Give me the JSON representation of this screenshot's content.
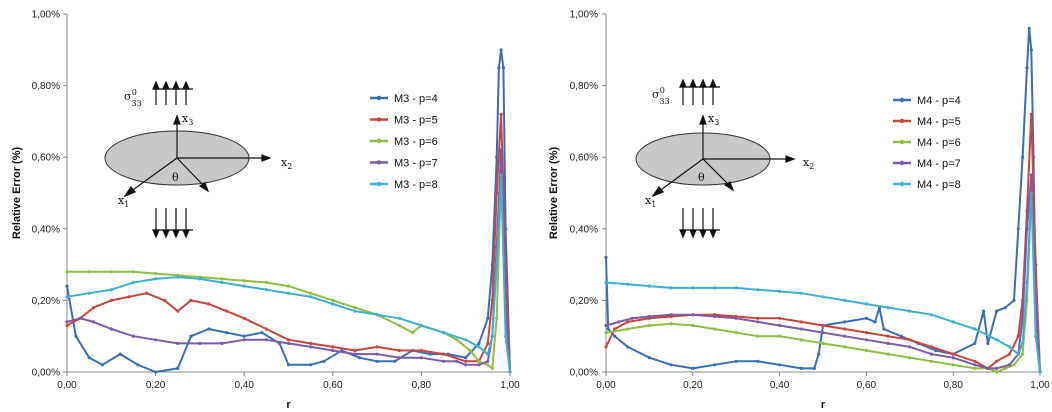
{
  "chart_data": [
    {
      "type": "line",
      "xlabel": "r",
      "ylabel": "Relative Error (%)",
      "xlim": [
        0,
        1
      ],
      "ylim": [
        0,
        1
      ],
      "xticks": [
        "0,00",
        "0,20",
        "0,40",
        "0,60",
        "0,80",
        "1,00"
      ],
      "yticks": [
        "0,00%",
        "0,20%",
        "0,40%",
        "0,60%",
        "0,80%",
        "1,00%"
      ],
      "legend_position": "right",
      "series": [
        {
          "name": "M3 - p=4",
          "color": "#3b6eb7",
          "x": [
            0,
            0.02,
            0.05,
            0.08,
            0.12,
            0.16,
            0.2,
            0.25,
            0.28,
            0.32,
            0.36,
            0.4,
            0.44,
            0.48,
            0.5,
            0.55,
            0.58,
            0.62,
            0.66,
            0.7,
            0.74,
            0.78,
            0.82,
            0.86,
            0.9,
            0.93,
            0.95,
            0.96,
            0.97,
            0.975,
            0.98,
            0.985,
            0.99,
            1.0
          ],
          "y": [
            0.24,
            0.1,
            0.04,
            0.02,
            0.05,
            0.02,
            0.0,
            0.01,
            0.1,
            0.12,
            0.11,
            0.1,
            0.11,
            0.08,
            0.02,
            0.02,
            0.03,
            0.06,
            0.04,
            0.03,
            0.03,
            0.06,
            0.05,
            0.05,
            0.04,
            0.08,
            0.15,
            0.3,
            0.6,
            0.85,
            0.9,
            0.85,
            0.4,
            0.0
          ]
        },
        {
          "name": "M3 - p=5",
          "color": "#c9453f",
          "x": [
            0,
            0.03,
            0.06,
            0.1,
            0.14,
            0.18,
            0.22,
            0.25,
            0.28,
            0.32,
            0.36,
            0.4,
            0.45,
            0.5,
            0.55,
            0.6,
            0.65,
            0.7,
            0.75,
            0.8,
            0.85,
            0.9,
            0.93,
            0.95,
            0.96,
            0.97,
            0.98,
            0.99,
            1.0
          ],
          "y": [
            0.13,
            0.15,
            0.18,
            0.2,
            0.21,
            0.22,
            0.2,
            0.17,
            0.2,
            0.19,
            0.17,
            0.15,
            0.12,
            0.09,
            0.08,
            0.07,
            0.06,
            0.07,
            0.06,
            0.06,
            0.05,
            0.03,
            0.03,
            0.08,
            0.2,
            0.5,
            0.72,
            0.3,
            0.0
          ]
        },
        {
          "name": "M3 - p=6",
          "color": "#8fbe45",
          "x": [
            0,
            0.05,
            0.1,
            0.15,
            0.2,
            0.25,
            0.3,
            0.35,
            0.4,
            0.45,
            0.5,
            0.55,
            0.6,
            0.65,
            0.7,
            0.75,
            0.78,
            0.8,
            0.85,
            0.88,
            0.91,
            0.93,
            0.95,
            0.96,
            0.97,
            0.98,
            0.99,
            1.0
          ],
          "y": [
            0.28,
            0.28,
            0.28,
            0.28,
            0.275,
            0.27,
            0.265,
            0.26,
            0.255,
            0.25,
            0.24,
            0.22,
            0.2,
            0.18,
            0.16,
            0.13,
            0.11,
            0.13,
            0.11,
            0.09,
            0.06,
            0.03,
            0.02,
            0.01,
            0.15,
            0.55,
            0.2,
            0.0
          ]
        },
        {
          "name": "M3 - p=7",
          "color": "#7d5ba6",
          "x": [
            0,
            0.03,
            0.06,
            0.1,
            0.15,
            0.2,
            0.25,
            0.3,
            0.35,
            0.4,
            0.45,
            0.5,
            0.55,
            0.6,
            0.65,
            0.7,
            0.75,
            0.8,
            0.85,
            0.88,
            0.9,
            0.93,
            0.95,
            0.96,
            0.97,
            0.98,
            0.99,
            1.0
          ],
          "y": [
            0.14,
            0.15,
            0.14,
            0.12,
            0.1,
            0.09,
            0.08,
            0.08,
            0.08,
            0.09,
            0.09,
            0.08,
            0.07,
            0.06,
            0.05,
            0.05,
            0.04,
            0.04,
            0.03,
            0.03,
            0.02,
            0.02,
            0.03,
            0.1,
            0.35,
            0.62,
            0.2,
            0.0
          ]
        },
        {
          "name": "M3 - p=8",
          "color": "#3fb1ce",
          "x": [
            0,
            0.05,
            0.1,
            0.15,
            0.2,
            0.25,
            0.3,
            0.35,
            0.4,
            0.45,
            0.5,
            0.55,
            0.6,
            0.65,
            0.7,
            0.75,
            0.8,
            0.85,
            0.9,
            0.93,
            0.95,
            0.96,
            0.97,
            0.98,
            0.99,
            1.0
          ],
          "y": [
            0.21,
            0.22,
            0.23,
            0.25,
            0.26,
            0.265,
            0.26,
            0.25,
            0.24,
            0.23,
            0.22,
            0.21,
            0.19,
            0.17,
            0.16,
            0.15,
            0.13,
            0.11,
            0.09,
            0.07,
            0.05,
            0.1,
            0.3,
            0.55,
            0.1,
            0.0
          ]
        }
      ]
    },
    {
      "type": "line",
      "xlabel": "r",
      "ylabel": "Relative Error (%)",
      "xlim": [
        0,
        1
      ],
      "ylim": [
        0,
        1
      ],
      "xticks": [
        "0,00",
        "0,20",
        "0,40",
        "0,60",
        "0,80",
        "1,00"
      ],
      "yticks": [
        "0,00%",
        "0,20%",
        "0,40%",
        "0,60%",
        "0,80%",
        "1,00%"
      ],
      "legend_position": "right",
      "series": [
        {
          "name": "M4 - p=4",
          "color": "#3b6eb7",
          "x": [
            0,
            0.005,
            0.02,
            0.05,
            0.1,
            0.15,
            0.2,
            0.25,
            0.3,
            0.35,
            0.4,
            0.45,
            0.48,
            0.49,
            0.5,
            0.55,
            0.6,
            0.62,
            0.63,
            0.64,
            0.68,
            0.72,
            0.76,
            0.8,
            0.85,
            0.87,
            0.88,
            0.9,
            0.92,
            0.94,
            0.95,
            0.96,
            0.97,
            0.975,
            0.98,
            0.985,
            0.99,
            1.0
          ],
          "y": [
            0.32,
            0.12,
            0.1,
            0.07,
            0.04,
            0.02,
            0.01,
            0.02,
            0.03,
            0.03,
            0.02,
            0.01,
            0.01,
            0.05,
            0.13,
            0.14,
            0.15,
            0.14,
            0.18,
            0.12,
            0.1,
            0.08,
            0.06,
            0.05,
            0.08,
            0.17,
            0.08,
            0.17,
            0.18,
            0.2,
            0.4,
            0.6,
            0.85,
            0.96,
            0.9,
            0.6,
            0.2,
            0.0
          ]
        },
        {
          "name": "M4 - p=5",
          "color": "#c9453f",
          "x": [
            0,
            0.02,
            0.05,
            0.1,
            0.15,
            0.2,
            0.25,
            0.3,
            0.35,
            0.4,
            0.45,
            0.5,
            0.55,
            0.6,
            0.65,
            0.7,
            0.75,
            0.8,
            0.85,
            0.88,
            0.9,
            0.93,
            0.95,
            0.96,
            0.97,
            0.98,
            0.99,
            1.0
          ],
          "y": [
            0.07,
            0.12,
            0.14,
            0.15,
            0.155,
            0.16,
            0.16,
            0.155,
            0.15,
            0.15,
            0.14,
            0.13,
            0.12,
            0.11,
            0.1,
            0.09,
            0.07,
            0.05,
            0.03,
            0.01,
            0.03,
            0.05,
            0.1,
            0.2,
            0.45,
            0.72,
            0.3,
            0.0
          ]
        },
        {
          "name": "M4 - p=6",
          "color": "#8fbe45",
          "x": [
            0,
            0.05,
            0.1,
            0.15,
            0.2,
            0.25,
            0.3,
            0.35,
            0.4,
            0.45,
            0.5,
            0.55,
            0.6,
            0.65,
            0.7,
            0.75,
            0.8,
            0.85,
            0.88,
            0.9,
            0.92,
            0.94,
            0.96,
            0.97,
            0.98,
            0.99,
            1.0
          ],
          "y": [
            0.11,
            0.12,
            0.13,
            0.135,
            0.13,
            0.12,
            0.11,
            0.1,
            0.1,
            0.09,
            0.08,
            0.07,
            0.06,
            0.05,
            0.04,
            0.03,
            0.02,
            0.01,
            0.01,
            0.0,
            0.01,
            0.02,
            0.05,
            0.2,
            0.5,
            0.2,
            0.0
          ]
        },
        {
          "name": "M4 - p=7",
          "color": "#7d5ba6",
          "x": [
            0,
            0.03,
            0.06,
            0.1,
            0.15,
            0.2,
            0.25,
            0.3,
            0.35,
            0.4,
            0.45,
            0.5,
            0.55,
            0.6,
            0.65,
            0.7,
            0.75,
            0.8,
            0.85,
            0.88,
            0.9,
            0.93,
            0.95,
            0.96,
            0.97,
            0.98,
            0.99,
            1.0
          ],
          "y": [
            0.13,
            0.14,
            0.15,
            0.155,
            0.16,
            0.16,
            0.155,
            0.15,
            0.14,
            0.13,
            0.12,
            0.11,
            0.1,
            0.09,
            0.08,
            0.07,
            0.05,
            0.04,
            0.02,
            0.01,
            0.01,
            0.02,
            0.05,
            0.15,
            0.4,
            0.55,
            0.2,
            0.0
          ]
        },
        {
          "name": "M4 - p=8",
          "color": "#3fb1ce",
          "x": [
            0,
            0.05,
            0.1,
            0.15,
            0.2,
            0.25,
            0.3,
            0.35,
            0.4,
            0.45,
            0.5,
            0.55,
            0.6,
            0.65,
            0.7,
            0.75,
            0.8,
            0.85,
            0.9,
            0.93,
            0.95,
            0.96,
            0.97,
            0.98,
            0.99,
            1.0
          ],
          "y": [
            0.25,
            0.245,
            0.24,
            0.235,
            0.235,
            0.235,
            0.235,
            0.23,
            0.225,
            0.22,
            0.21,
            0.2,
            0.19,
            0.18,
            0.17,
            0.16,
            0.14,
            0.12,
            0.09,
            0.07,
            0.05,
            0.08,
            0.25,
            0.5,
            0.1,
            0.0
          ]
        }
      ]
    }
  ],
  "diagram": {
    "stress_symbol": "σ",
    "stress_super": "0",
    "stress_sub": "33",
    "axis_x1": "x",
    "axis_x1_sub": "1",
    "axis_x2": "x",
    "axis_x2_sub": "2",
    "axis_x3": "x",
    "axis_x3_sub": "3",
    "angle": "θ"
  }
}
